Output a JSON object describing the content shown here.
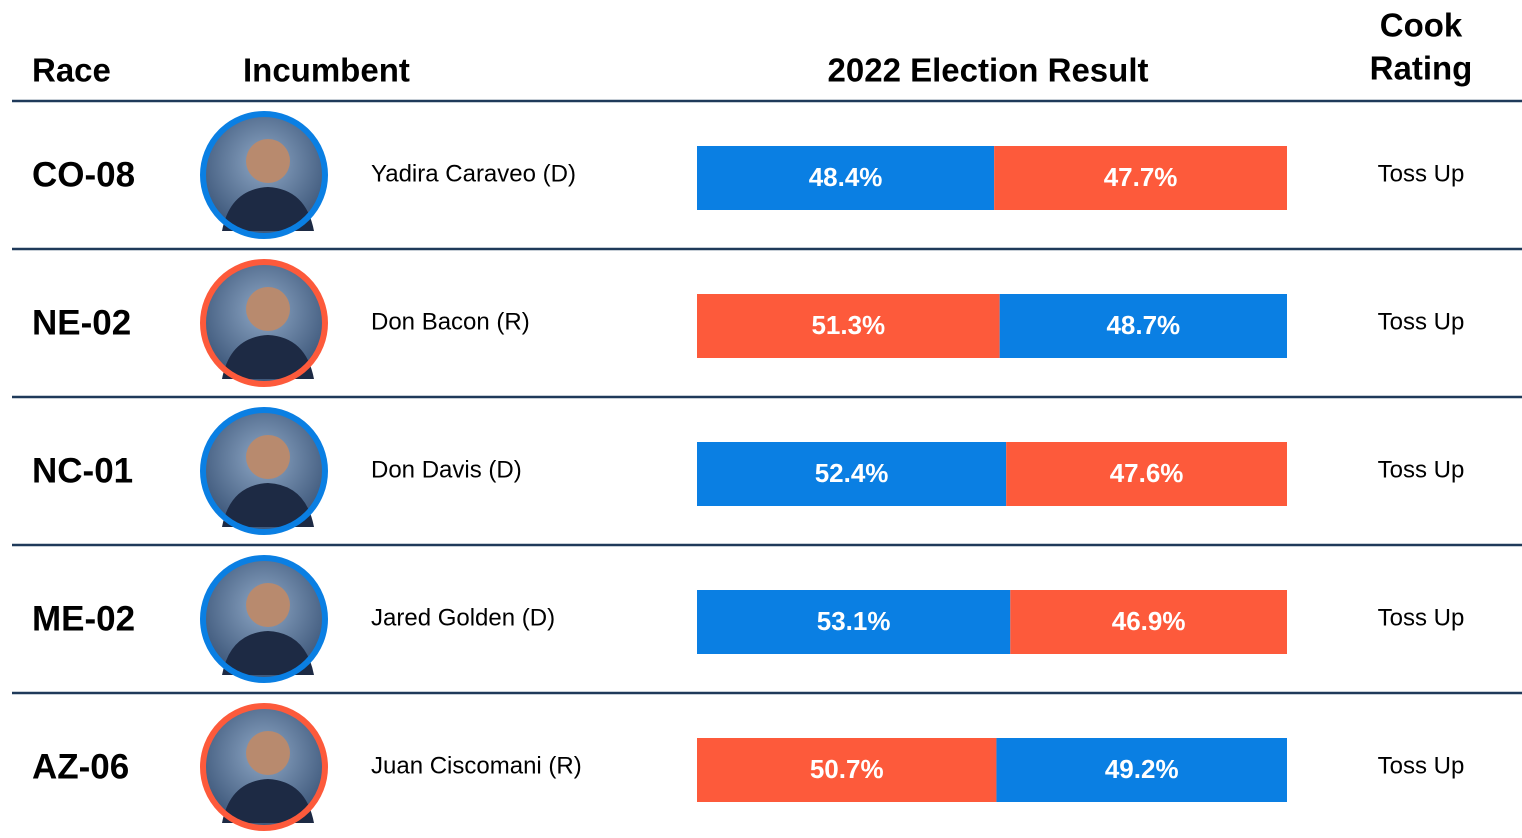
{
  "header": {
    "race": "Race",
    "incumbent": "Incumbent",
    "result": "2022 Election Result",
    "rating_line1": "Cook",
    "rating_line2": "Rating"
  },
  "rows": [
    {
      "race": "CO-08",
      "incumbent": "Yadira Caraveo (D)",
      "ring_color": "#0a7fe3",
      "rating": "Toss Up",
      "results": [
        {
          "color": "#0a7fe3",
          "value": 48.4,
          "label": "48.4%"
        },
        {
          "color": "#fd5a3b",
          "value": 47.7,
          "label": "47.7%"
        }
      ]
    },
    {
      "race": "NE-02",
      "incumbent": "Don Bacon (R)",
      "ring_color": "#fd5a3b",
      "rating": "Toss Up",
      "results": [
        {
          "color": "#fd5a3b",
          "value": 51.3,
          "label": "51.3%"
        },
        {
          "color": "#0a7fe3",
          "value": 48.7,
          "label": "48.7%"
        }
      ]
    },
    {
      "race": "NC-01",
      "incumbent": "Don Davis (D)",
      "ring_color": "#0a7fe3",
      "rating": "Toss Up",
      "results": [
        {
          "color": "#0a7fe3",
          "value": 52.4,
          "label": "52.4%"
        },
        {
          "color": "#fd5a3b",
          "value": 47.6,
          "label": "47.6%"
        }
      ]
    },
    {
      "race": "ME-02",
      "incumbent": "Jared Golden (D)",
      "ring_color": "#0a7fe3",
      "rating": "Toss Up",
      "results": [
        {
          "color": "#0a7fe3",
          "value": 53.1,
          "label": "53.1%"
        },
        {
          "color": "#fd5a3b",
          "value": 46.9,
          "label": "46.9%"
        }
      ]
    },
    {
      "race": "AZ-06",
      "incumbent": "Juan Ciscomani (R)",
      "ring_color": "#fd5a3b",
      "rating": "Toss Up",
      "results": [
        {
          "color": "#fd5a3b",
          "value": 50.7,
          "label": "50.7%"
        },
        {
          "color": "#0a7fe3",
          "value": 49.2,
          "label": "49.2%"
        }
      ]
    }
  ]
}
